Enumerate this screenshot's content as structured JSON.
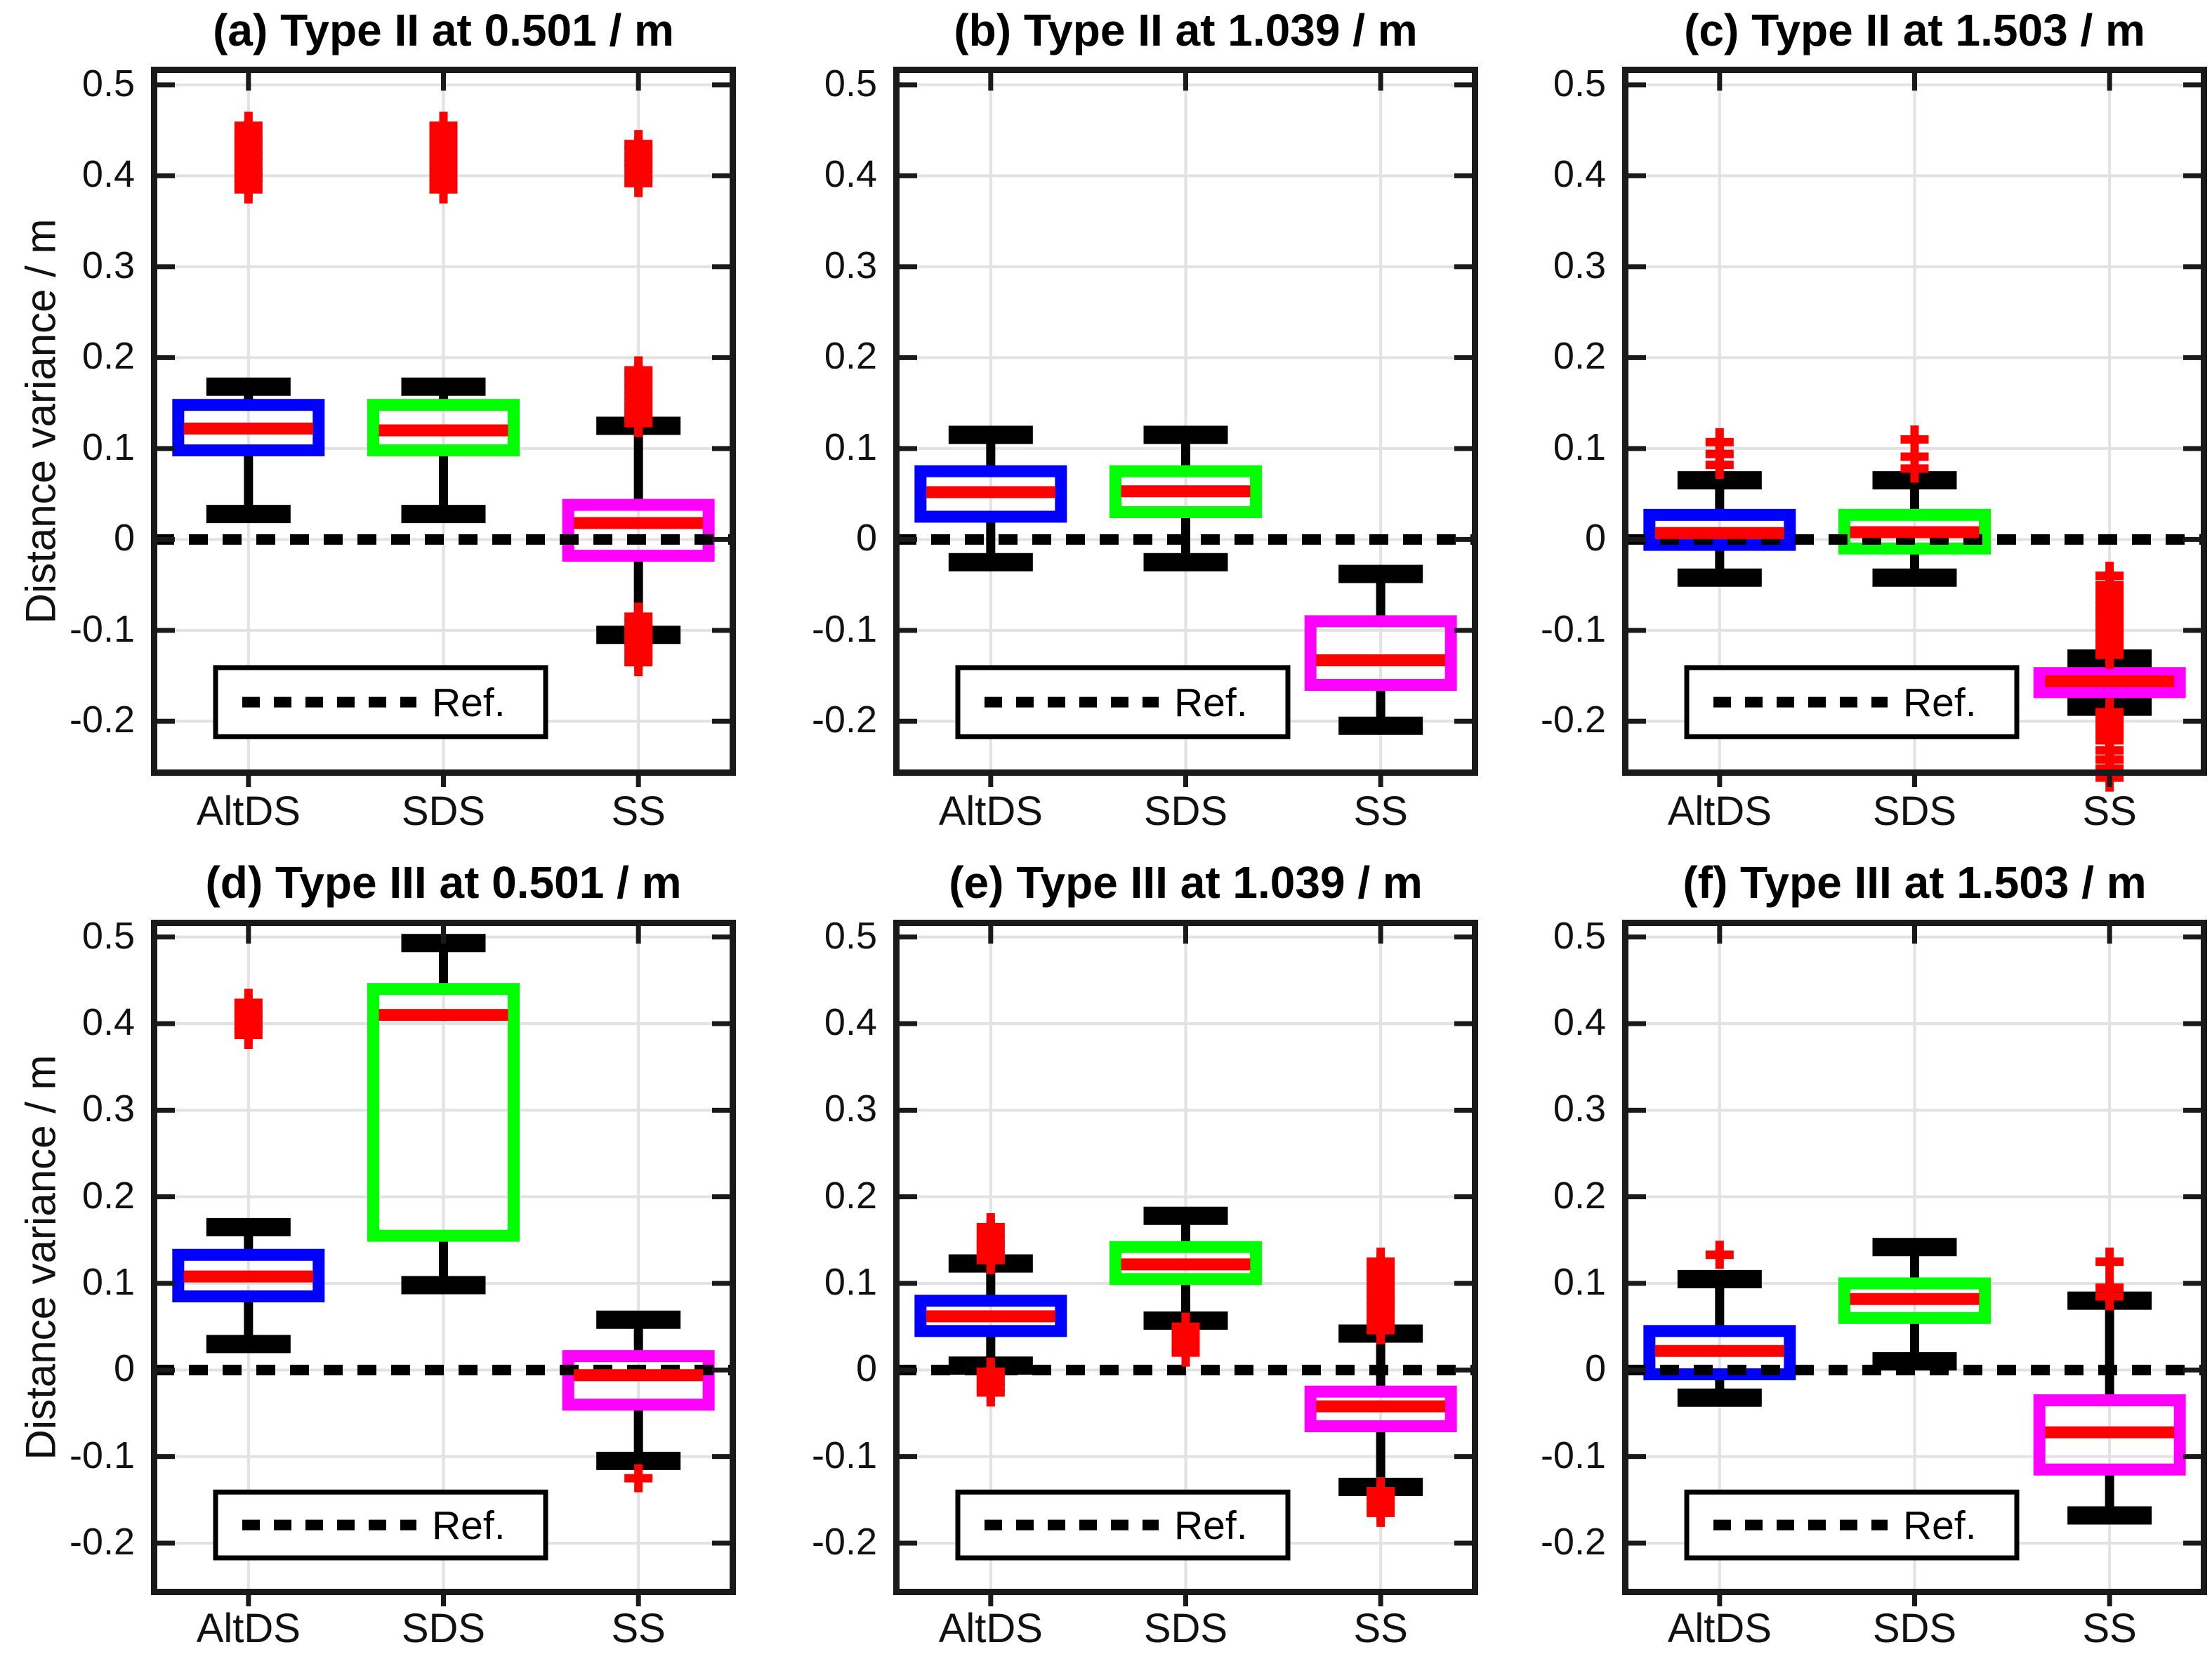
{
  "figure": {
    "ylabel": "Distance variance / m",
    "legend_label": "Ref.",
    "categories": [
      "AltDS",
      "SDS",
      "SS"
    ],
    "ytick_labels": [
      "0.5",
      "0.4",
      "0.3",
      "0.2",
      "0.1",
      "0",
      "-0.1",
      "-0.2"
    ],
    "yticks": [
      0.5,
      0.4,
      0.3,
      0.2,
      0.1,
      0,
      -0.1,
      -0.2
    ],
    "ylim": [
      -0.26,
      0.52
    ],
    "ref_value": 0,
    "colors": {
      "box_altds": "#0000ff",
      "box_sds": "#00ff00",
      "box_ss": "#ff00ff",
      "median": "#ff0000",
      "outlier": "#ff0000",
      "whisker": "#000000",
      "grid": "#e2e2e2",
      "axis": "#1a1a1a",
      "background": "#ffffff"
    }
  },
  "chart_data": [
    {
      "id": "a",
      "type": "boxplot",
      "title": "(a) Type II at 0.501 / m",
      "boxes": [
        {
          "category": "AltDS",
          "color": "#0000ff",
          "q1": 0.098,
          "median": 0.122,
          "q3": 0.148,
          "whisker_low": 0.028,
          "whisker_high": 0.168,
          "outliers": [
            0.385,
            0.392,
            0.398,
            0.404,
            0.41,
            0.416,
            0.422,
            0.428,
            0.434,
            0.44,
            0.446,
            0.455
          ]
        },
        {
          "category": "SDS",
          "color": "#00ff00",
          "q1": 0.098,
          "median": 0.12,
          "q3": 0.148,
          "whisker_low": 0.028,
          "whisker_high": 0.168,
          "outliers": [
            0.385,
            0.392,
            0.398,
            0.404,
            0.41,
            0.416,
            0.422,
            0.428,
            0.434,
            0.44,
            0.446,
            0.455
          ]
        },
        {
          "category": "SS",
          "color": "#ff00ff",
          "q1": -0.018,
          "median": 0.018,
          "q3": 0.038,
          "whisker_low": -0.105,
          "whisker_high": 0.125,
          "outliers": [
            0.392,
            0.4,
            0.408,
            0.414,
            0.42,
            0.428,
            0.435,
            0.128,
            0.134,
            0.14,
            0.146,
            0.152,
            0.158,
            0.165,
            0.172,
            0.18,
            0.186,
            -0.085,
            -0.092,
            -0.099,
            -0.106,
            -0.113,
            -0.12,
            -0.128,
            -0.135
          ]
        }
      ]
    },
    {
      "id": "b",
      "type": "boxplot",
      "title": "(b) Type II at 1.039 / m",
      "boxes": [
        {
          "category": "AltDS",
          "color": "#0000ff",
          "q1": 0.025,
          "median": 0.052,
          "q3": 0.075,
          "whisker_low": -0.025,
          "whisker_high": 0.115,
          "outliers": []
        },
        {
          "category": "SDS",
          "color": "#00ff00",
          "q1": 0.03,
          "median": 0.053,
          "q3": 0.075,
          "whisker_low": -0.025,
          "whisker_high": 0.115,
          "outliers": []
        },
        {
          "category": "SS",
          "color": "#ff00ff",
          "q1": -0.16,
          "median": -0.133,
          "q3": -0.09,
          "whisker_low": -0.205,
          "whisker_high": -0.038,
          "outliers": []
        }
      ]
    },
    {
      "id": "c",
      "type": "boxplot",
      "title": "(c) Type II at 1.503 / m",
      "boxes": [
        {
          "category": "AltDS",
          "color": "#0000ff",
          "q1": -0.006,
          "median": 0.007,
          "q3": 0.027,
          "whisker_low": -0.042,
          "whisker_high": 0.065,
          "outliers": [
            0.082,
            0.094,
            0.107
          ]
        },
        {
          "category": "SDS",
          "color": "#00ff00",
          "q1": -0.01,
          "median": 0.008,
          "q3": 0.027,
          "whisker_low": -0.042,
          "whisker_high": 0.065,
          "outliers": [
            0.078,
            0.091,
            0.11
          ]
        },
        {
          "category": "SS",
          "color": "#ff00ff",
          "q1": -0.168,
          "median": -0.156,
          "q3": -0.147,
          "whisker_low": -0.184,
          "whisker_high": -0.131,
          "outliers": [
            -0.04,
            -0.05,
            -0.058,
            -0.066,
            -0.073,
            -0.079,
            -0.085,
            -0.091,
            -0.097,
            -0.103,
            -0.109,
            -0.115,
            -0.121,
            -0.127,
            -0.19,
            -0.196,
            -0.202,
            -0.208,
            -0.214,
            -0.221,
            -0.232,
            -0.242,
            -0.252,
            -0.262
          ]
        }
      ]
    },
    {
      "id": "d",
      "type": "boxplot",
      "title": "(d) Type III at 0.501 / m",
      "boxes": [
        {
          "category": "AltDS",
          "color": "#0000ff",
          "q1": 0.085,
          "median": 0.108,
          "q3": 0.133,
          "whisker_low": 0.03,
          "whisker_high": 0.165,
          "outliers": [
            0.387,
            0.393,
            0.399,
            0.405,
            0.411,
            0.417,
            0.424
          ]
        },
        {
          "category": "SDS",
          "color": "#00ff00",
          "q1": 0.155,
          "median": 0.41,
          "q3": 0.44,
          "whisker_low": 0.098,
          "whisker_high": 0.493,
          "outliers": []
        },
        {
          "category": "SS",
          "color": "#ff00ff",
          "q1": -0.04,
          "median": -0.006,
          "q3": 0.016,
          "whisker_low": -0.105,
          "whisker_high": 0.058,
          "outliers": [
            -0.125
          ]
        }
      ]
    },
    {
      "id": "e",
      "type": "boxplot",
      "title": "(e) Type III at 1.039 / m",
      "boxes": [
        {
          "category": "AltDS",
          "color": "#0000ff",
          "q1": 0.045,
          "median": 0.062,
          "q3": 0.08,
          "whisker_low": 0.005,
          "whisker_high": 0.123,
          "outliers": [
            0.127,
            0.133,
            0.139,
            0.145,
            0.151,
            0.158,
            0.165,
            -0.002,
            -0.008,
            -0.014,
            -0.02,
            -0.026
          ]
        },
        {
          "category": "SDS",
          "color": "#00ff00",
          "q1": 0.105,
          "median": 0.122,
          "q3": 0.142,
          "whisker_low": 0.057,
          "whisker_high": 0.178,
          "outliers": [
            0.02,
            0.026,
            0.032,
            0.038,
            0.044,
            0.05
          ]
        },
        {
          "category": "SS",
          "color": "#ff00ff",
          "q1": -0.065,
          "median": -0.042,
          "q3": -0.025,
          "whisker_low": -0.135,
          "whisker_high": 0.042,
          "outliers": [
            0.046,
            0.053,
            0.06,
            0.067,
            0.074,
            0.081,
            0.088,
            0.095,
            0.103,
            0.11,
            0.118,
            0.125,
            -0.14,
            -0.146,
            -0.152,
            -0.158,
            -0.165
          ]
        }
      ]
    },
    {
      "id": "f",
      "type": "boxplot",
      "title": "(f) Type III at 1.503 / m",
      "boxes": [
        {
          "category": "AltDS",
          "color": "#0000ff",
          "q1": -0.005,
          "median": 0.022,
          "q3": 0.045,
          "whisker_low": -0.032,
          "whisker_high": 0.105,
          "outliers": [
            0.133
          ]
        },
        {
          "category": "SDS",
          "color": "#00ff00",
          "q1": 0.06,
          "median": 0.082,
          "q3": 0.1,
          "whisker_low": 0.01,
          "whisker_high": 0.142,
          "outliers": []
        },
        {
          "category": "SS",
          "color": "#ff00ff",
          "q1": -0.115,
          "median": -0.072,
          "q3": -0.035,
          "whisker_low": -0.168,
          "whisker_high": 0.08,
          "outliers": [
            0.125,
            0.095,
            0.085
          ]
        }
      ]
    }
  ]
}
